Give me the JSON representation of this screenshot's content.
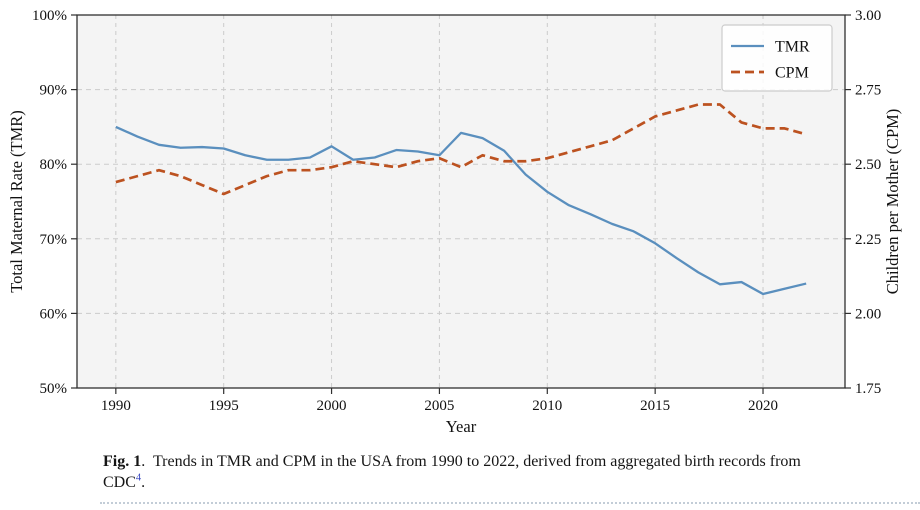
{
  "caption": {
    "label": "Fig. 1",
    "label_suffix": ".",
    "body": "Trends in TMR and CPM in the USA from 1990 to 2022, derived from aggregated birth records from",
    "tail": "CDC",
    "ref_mark": "4",
    "period": "."
  },
  "chart_data": {
    "type": "line",
    "title": "",
    "xlabel": "Year",
    "ylabel_left": "Total Maternal Rate (TMR)",
    "ylabel_right": "Children per Mother (CPM)",
    "grid": true,
    "legend": {
      "position": "top-right",
      "entries": [
        "TMR",
        "CPM"
      ]
    },
    "xlim": [
      1988.2,
      2023.8
    ],
    "x_ticks": [
      1990,
      1995,
      2000,
      2005,
      2010,
      2015,
      2020
    ],
    "x_tick_labels": [
      "1990",
      "1995",
      "2000",
      "2005",
      "2010",
      "2015",
      "2020"
    ],
    "y_left": {
      "min": 50,
      "max": 100,
      "ticks": [
        50,
        60,
        70,
        80,
        90,
        100
      ],
      "labels": [
        "50%",
        "60%",
        "70%",
        "80%",
        "90%",
        "100%"
      ]
    },
    "y_right": {
      "min": 1.75,
      "max": 3.0,
      "ticks": [
        1.75,
        2.0,
        2.25,
        2.5,
        2.75,
        3.0
      ],
      "labels": [
        "1.75",
        "2.00",
        "2.25",
        "2.50",
        "2.75",
        "3.00"
      ]
    },
    "x": [
      1990,
      1991,
      1992,
      1993,
      1994,
      1995,
      1996,
      1997,
      1998,
      1999,
      2000,
      2001,
      2002,
      2003,
      2004,
      2005,
      2006,
      2007,
      2008,
      2009,
      2010,
      2011,
      2012,
      2013,
      2014,
      2015,
      2016,
      2017,
      2018,
      2019,
      2020,
      2021,
      2022
    ],
    "series": [
      {
        "name": "TMR",
        "axis": "left",
        "style": "solid",
        "color": "#5a8fbe",
        "values": [
          85.0,
          83.7,
          82.6,
          82.2,
          82.3,
          82.1,
          81.2,
          80.6,
          80.6,
          80.9,
          82.4,
          80.6,
          80.9,
          81.9,
          81.7,
          81.2,
          84.2,
          83.5,
          81.8,
          78.6,
          76.3,
          74.5,
          73.3,
          72.0,
          71.0,
          69.4,
          67.4,
          65.5,
          63.9,
          64.2,
          62.6,
          63.3,
          64.0
        ]
      },
      {
        "name": "CPM",
        "axis": "right",
        "style": "dashed",
        "color": "#bc5220",
        "values": [
          2.44,
          2.46,
          2.48,
          2.46,
          2.43,
          2.4,
          2.43,
          2.46,
          2.48,
          2.48,
          2.49,
          2.51,
          2.5,
          2.49,
          2.51,
          2.52,
          2.49,
          2.53,
          2.51,
          2.51,
          2.52,
          2.54,
          2.56,
          2.58,
          2.62,
          2.66,
          2.68,
          2.7,
          2.7,
          2.64,
          2.62,
          2.62,
          2.6
        ]
      }
    ],
    "colors": {
      "plot_bg": "#f4f4f4",
      "grid": "#cbcbcb",
      "spine": "#2f2f2f",
      "legend_border": "#cccccc",
      "legend_bg": "#ffffff"
    }
  }
}
